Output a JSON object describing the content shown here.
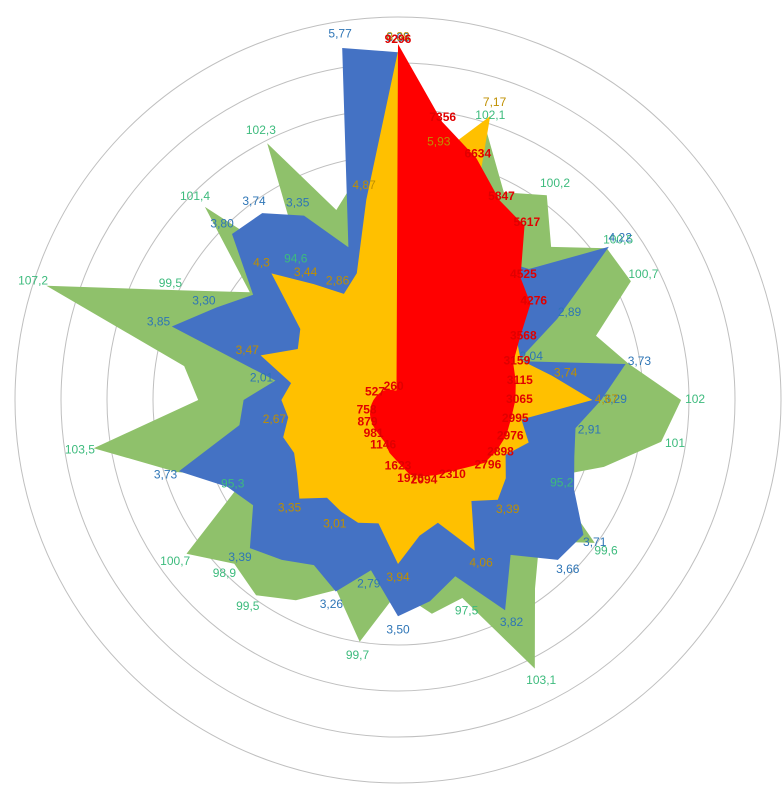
{
  "chart_data": {
    "type": "radar",
    "series": [
      {
        "color": "#8fc16b",
        "label_color": "#3dbb7d",
        "rlim": [
          85,
          108
        ],
        "values": [
          98.5,
          97,
          102.1,
          99,
          100.2,
          98,
          100.5,
          100.7,
          97.5,
          99,
          102,
          101,
          98,
          95.2,
          99.6,
          97,
          99,
          103.1,
          97.5,
          98,
          96.5,
          99.7,
          97,
          98.5,
          99.5,
          98.9,
          100.7,
          95.3,
          99,
          103.5,
          97,
          98,
          107.2,
          99.5,
          96,
          101.4,
          94.6,
          102.3,
          97,
          99
        ],
        "value_labels": [
          null,
          null,
          "102,1",
          null,
          "100,2",
          null,
          "100,5",
          "100,7",
          null,
          null,
          "102",
          "101",
          null,
          "95,2",
          "99,6",
          null,
          null,
          "103,1",
          "97,5",
          null,
          null,
          "99,7",
          null,
          null,
          "99,5",
          "98,9",
          "100,7",
          "95,3",
          null,
          "103,5",
          null,
          null,
          "107,2",
          "99,5",
          null,
          "101,4",
          "94,6",
          "102,3",
          null,
          null
        ]
      },
      {
        "color": "#4472c4",
        "label_color": "#2e75b6",
        "rlim": [
          0,
          6.2
        ],
        "values": [
          5.63,
          2.5,
          2.4,
          2.6,
          2.8,
          3.0,
          4.22,
          2.89,
          2.04,
          3.73,
          3.29,
          2.91,
          3.0,
          3.2,
          3.71,
          3.66,
          3.1,
          3.82,
          3.0,
          3.3,
          3.5,
          2.79,
          3.26,
          3.0,
          3.2,
          3.39,
          2.9,
          3.1,
          3.73,
          2.6,
          2.5,
          2.01,
          3.85,
          3.3,
          2.9,
          3.8,
          3.74,
          3.35,
          2.6,
          5.77
        ],
        "value_labels": [
          "5,63",
          null,
          null,
          null,
          null,
          null,
          "4,22",
          "2,89",
          "2,04",
          "3,73",
          "3,29",
          "2,91",
          null,
          null,
          "3,71",
          "3,66",
          null,
          "3,82",
          null,
          null,
          "3,50",
          "2,79",
          "3,26",
          null,
          null,
          "3,39",
          null,
          null,
          "3,73",
          null,
          null,
          "2,01",
          "3,85",
          "3,30",
          null,
          "3,80",
          "3,74",
          "3,35",
          null,
          "5,77"
        ]
      },
      {
        "color": "#ffc000",
        "label_color": "#bf8f00",
        "rlim": [
          0,
          9.2
        ],
        "values": [
          8.38,
          5.93,
          7.17,
          3.5,
          3.2,
          3.6,
          3.0,
          3.2,
          3.1,
          3.74,
          4.67,
          3.0,
          3.3,
          2.9,
          3.2,
          3.39,
          3.0,
          4.06,
          3.1,
          3.3,
          3.94,
          3.0,
          3.1,
          3.01,
          2.9,
          3.35,
          3.0,
          2.8,
          2.9,
          2.67,
          2.8,
          2.6,
          3.47,
          2.7,
          2.9,
          4.3,
          3.44,
          2.86,
          3.2,
          4.87
        ],
        "value_labels": [
          "8,38",
          "5,93",
          "7,17",
          null,
          null,
          null,
          null,
          null,
          null,
          "3,74",
          "4,67",
          null,
          null,
          null,
          null,
          "3,39",
          null,
          "4,06",
          null,
          null,
          "3,94",
          null,
          null,
          "3,01",
          null,
          "3,35",
          null,
          null,
          null,
          "2,67",
          null,
          null,
          "3,47",
          null,
          null,
          "4,3",
          "3,44",
          "2,86",
          null,
          "4,87"
        ]
      },
      {
        "color": "#ff0000",
        "label_color": "#e00000",
        "rlim": [
          0,
          10000
        ],
        "values": [
          9296,
          7356,
          6634,
          5847,
          5617,
          4525,
          4276,
          3568,
          3159,
          3115,
          3065,
          2995,
          2976,
          2898,
          2796,
          2500,
          2310,
          2200,
          2094,
          1976,
          1623,
          1400,
          1146,
          1050,
          981,
          930,
          879,
          820,
          758,
          700,
          640,
          580,
          527,
          480,
          430,
          380,
          330,
          300,
          260,
          250
        ],
        "value_labels": [
          "9296",
          "7356",
          "6634",
          "5847",
          "5617",
          "4525",
          "4276",
          "3568",
          "3159",
          "3115",
          "3065",
          "2995",
          "2976",
          "2898",
          "2796",
          null,
          "2310",
          null,
          "2094",
          "1976",
          "1623",
          null,
          "1146",
          null,
          "981",
          null,
          "879",
          null,
          "758",
          null,
          null,
          null,
          "527",
          null,
          null,
          null,
          null,
          null,
          "260",
          null
        ]
      }
    ]
  }
}
